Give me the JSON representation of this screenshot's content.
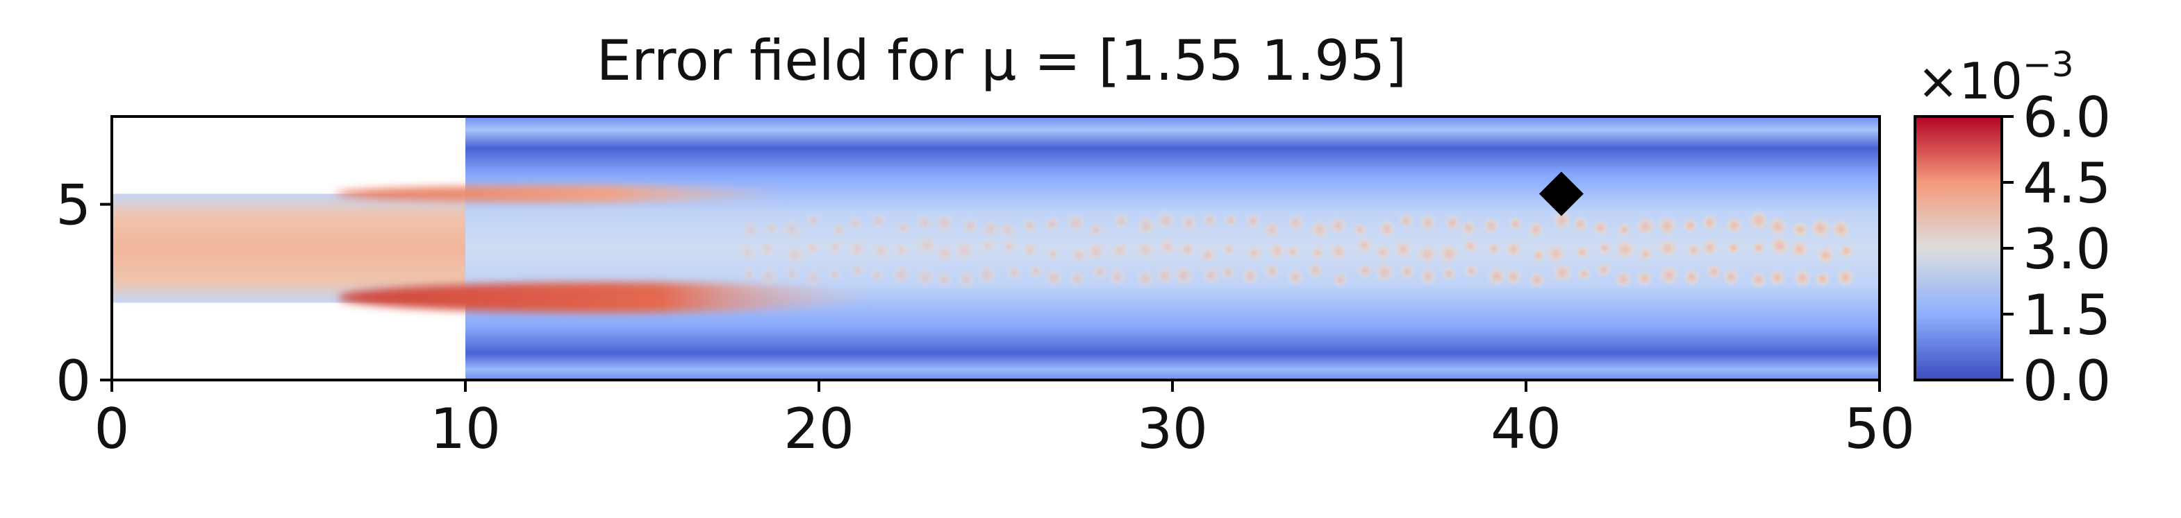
{
  "chart_data": {
    "type": "heatmap",
    "title": "Error field for μ = [1.55 1.95]",
    "xlabel": "",
    "ylabel": "",
    "xlim": [
      0,
      50
    ],
    "ylim": [
      0,
      7.5
    ],
    "x_ticks": [
      0,
      10,
      20,
      30,
      40,
      50
    ],
    "x_tick_labels": [
      "0",
      "10",
      "20",
      "30",
      "40",
      "50"
    ],
    "y_ticks": [
      0,
      5
    ],
    "y_tick_labels": [
      "0",
      "5"
    ],
    "grid": false,
    "domain": {
      "inlet_channel": {
        "x": [
          0,
          10
        ],
        "y": [
          2.2,
          5.3
        ]
      },
      "main_channel": {
        "x": [
          10,
          50
        ],
        "y": [
          0,
          7.5
        ]
      }
    },
    "marker": {
      "shape": "diamond",
      "x": 41,
      "y": 5.3,
      "color": "#000000"
    },
    "colorbar": {
      "colormap": "coolwarm",
      "range": [
        0,
        6.0
      ],
      "ticks": [
        0.0,
        1.5,
        3.0,
        4.5,
        6.0
      ],
      "tick_labels": [
        "0.0",
        "1.5",
        "3.0",
        "4.5",
        "6.0"
      ],
      "multiplier_label": "×10",
      "multiplier_exponent": "−3",
      "colors": [
        "#3b4cc0",
        "#8db0fe",
        "#dddddd",
        "#f49a7b",
        "#b40426"
      ]
    },
    "field_levels": {
      "outer_band_near_walls": 0.3,
      "main_channel_background": 1.3,
      "central_jet": 2.2,
      "jet_cell_peaks": 3.3,
      "inlet_channel": 3.3,
      "upper_step_corner_streak": 4.8,
      "lower_step_corner_streak": 6.0
    }
  }
}
